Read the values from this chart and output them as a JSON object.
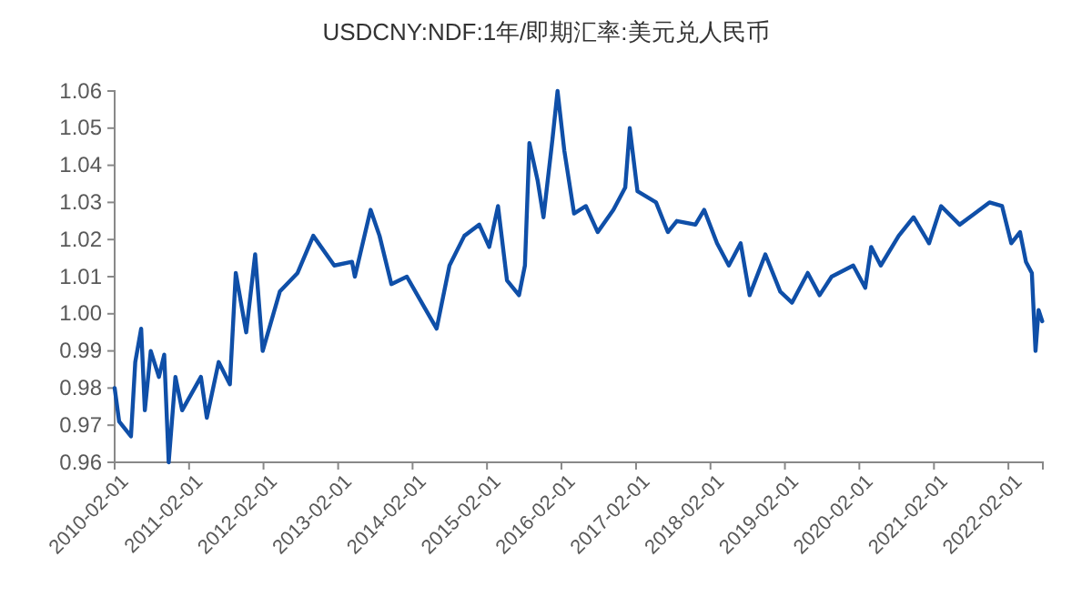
{
  "chart_data": {
    "type": "line",
    "title": "USDCNY:NDF:1年/即期汇率:美元兑人民币",
    "x": [
      "2010-02-01",
      "2010-02-23",
      "2010-04-22",
      "2010-05-13",
      "2010-06-11",
      "2010-06-29",
      "2010-07-28",
      "2010-09-06",
      "2010-10-02",
      "2010-10-24",
      "2010-11-26",
      "2010-12-29",
      "2011-03-31",
      "2011-04-29",
      "2011-06-26",
      "2011-08-20",
      "2011-09-18",
      "2011-11-08",
      "2011-12-22",
      "2012-01-28",
      "2012-04-21",
      "2012-07-17",
      "2012-10-02",
      "2013-01-13",
      "2013-04-10",
      "2013-04-24",
      "2013-07-10",
      "2013-08-23",
      "2013-10-20",
      "2014-01-04",
      "2014-03-18",
      "2014-05-30",
      "2014-08-01",
      "2014-10-13",
      "2014-12-25",
      "2015-02-12",
      "2015-03-27",
      "2015-05-10",
      "2015-07-08",
      "2015-08-06",
      "2015-08-28",
      "2015-10-07",
      "2015-11-05",
      "2015-12-19",
      "2016-01-13",
      "2016-02-15",
      "2016-04-03",
      "2016-05-31",
      "2016-07-28",
      "2016-10-13",
      "2016-12-10",
      "2017-01-01",
      "2017-02-08",
      "2017-05-10",
      "2017-07-07",
      "2017-08-20",
      "2017-11-19",
      "2018-01-01",
      "2018-03-05",
      "2018-05-02",
      "2018-06-29",
      "2018-08-12",
      "2018-10-28",
      "2019-01-09",
      "2019-03-08",
      "2019-05-24",
      "2019-07-21",
      "2019-09-18",
      "2020-01-02",
      "2020-03-01",
      "2020-03-30",
      "2020-05-16",
      "2020-08-12",
      "2020-10-24",
      "2021-01-08",
      "2021-03-08",
      "2021-06-07",
      "2021-08-19",
      "2021-10-31",
      "2022-01-01",
      "2022-02-15",
      "2022-03-30",
      "2022-04-28",
      "2022-05-27",
      "2022-06-14",
      "2022-06-29",
      "2022-07-17"
    ],
    "series": [
      {
        "color": "#0f4fa8",
        "values": [
          0.98,
          0.971,
          0.967,
          0.987,
          0.996,
          0.974,
          0.99,
          0.983,
          0.989,
          0.96,
          0.983,
          0.974,
          0.983,
          0.972,
          0.987,
          0.981,
          1.011,
          0.995,
          1.016,
          0.99,
          1.006,
          1.011,
          1.021,
          1.013,
          1.014,
          1.01,
          1.028,
          1.021,
          1.008,
          1.01,
          1.003,
          0.996,
          1.013,
          1.021,
          1.024,
          1.018,
          1.029,
          1.009,
          1.005,
          1.013,
          1.046,
          1.036,
          1.026,
          1.047,
          1.06,
          1.044,
          1.027,
          1.029,
          1.022,
          1.028,
          1.034,
          1.05,
          1.033,
          1.03,
          1.022,
          1.025,
          1.024,
          1.028,
          1.019,
          1.013,
          1.019,
          1.005,
          1.016,
          1.006,
          1.003,
          1.011,
          1.005,
          1.01,
          1.013,
          1.007,
          1.018,
          1.013,
          1.021,
          1.026,
          1.019,
          1.029,
          1.024,
          1.027,
          1.03,
          1.029,
          1.019,
          1.022,
          1.014,
          1.011,
          0.99,
          1.001,
          0.998
        ]
      }
    ],
    "xlim": [
      "2010-02-01",
      "2022-07-20"
    ],
    "xticks": [
      "2010-02-01",
      "2011-02-01",
      "2012-02-01",
      "2013-02-01",
      "2014-02-01",
      "2015-02-01",
      "2016-02-01",
      "2017-02-01",
      "2018-02-01",
      "2019-02-01",
      "2020-02-01",
      "2021-02-01",
      "2022-02-01"
    ],
    "ylim": [
      0.96,
      1.06
    ],
    "yticks": [
      0.96,
      0.97,
      0.98,
      0.99,
      {
        "value": 1,
        "label": "1.00"
      },
      1.01,
      1.02,
      1.03,
      1.04,
      1.05,
      1.06
    ],
    "grid": false,
    "marker": "none",
    "line_style": "solid"
  }
}
